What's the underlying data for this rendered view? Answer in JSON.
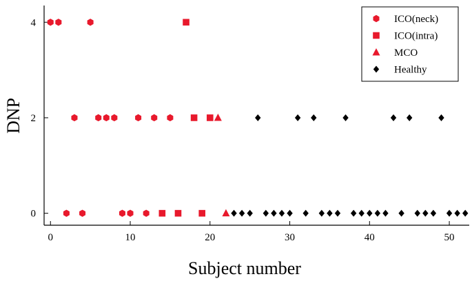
{
  "chart_data": {
    "type": "scatter",
    "xlabel": "Subject number",
    "ylabel": "DNP",
    "xlim": [
      -0.8,
      52.5
    ],
    "ylim": [
      -0.25,
      4.35
    ],
    "xticks": [
      0,
      10,
      20,
      30,
      40,
      50
    ],
    "yticks": [
      0,
      2,
      4
    ],
    "grid": false,
    "legend_position": "top-right",
    "series": [
      {
        "name": "ICO(neck)",
        "marker": "hexagon",
        "color": "#e8192c",
        "points": [
          [
            0,
            4
          ],
          [
            1,
            4
          ],
          [
            5,
            4
          ],
          [
            3,
            2
          ],
          [
            6,
            2
          ],
          [
            7,
            2
          ],
          [
            8,
            2
          ],
          [
            11,
            2
          ],
          [
            13,
            2
          ],
          [
            15,
            2
          ],
          [
            2,
            0
          ],
          [
            4,
            0
          ],
          [
            9,
            0
          ],
          [
            10,
            0
          ],
          [
            12,
            0
          ]
        ]
      },
      {
        "name": "ICO(intra)",
        "marker": "square",
        "color": "#e8192c",
        "points": [
          [
            17,
            4
          ],
          [
            18,
            2
          ],
          [
            20,
            2
          ],
          [
            14,
            0
          ],
          [
            16,
            0
          ],
          [
            19,
            0
          ]
        ]
      },
      {
        "name": "MCO",
        "marker": "triangle",
        "color": "#e8192c",
        "points": [
          [
            21,
            2
          ],
          [
            22,
            0
          ]
        ]
      },
      {
        "name": "Healthy",
        "marker": "diamond",
        "color": "#000000",
        "points": [
          [
            26,
            2
          ],
          [
            31,
            2
          ],
          [
            33,
            2
          ],
          [
            37,
            2
          ],
          [
            43,
            2
          ],
          [
            45,
            2
          ],
          [
            49,
            2
          ],
          [
            23,
            0
          ],
          [
            24,
            0
          ],
          [
            25,
            0
          ],
          [
            27,
            0
          ],
          [
            28,
            0
          ],
          [
            29,
            0
          ],
          [
            30,
            0
          ],
          [
            32,
            0
          ],
          [
            34,
            0
          ],
          [
            35,
            0
          ],
          [
            36,
            0
          ],
          [
            38,
            0
          ],
          [
            39,
            0
          ],
          [
            40,
            0
          ],
          [
            41,
            0
          ],
          [
            42,
            0
          ],
          [
            44,
            0
          ],
          [
            46,
            0
          ],
          [
            47,
            0
          ],
          [
            48,
            0
          ],
          [
            50,
            0
          ],
          [
            51,
            0
          ],
          [
            52,
            0
          ]
        ]
      }
    ]
  }
}
